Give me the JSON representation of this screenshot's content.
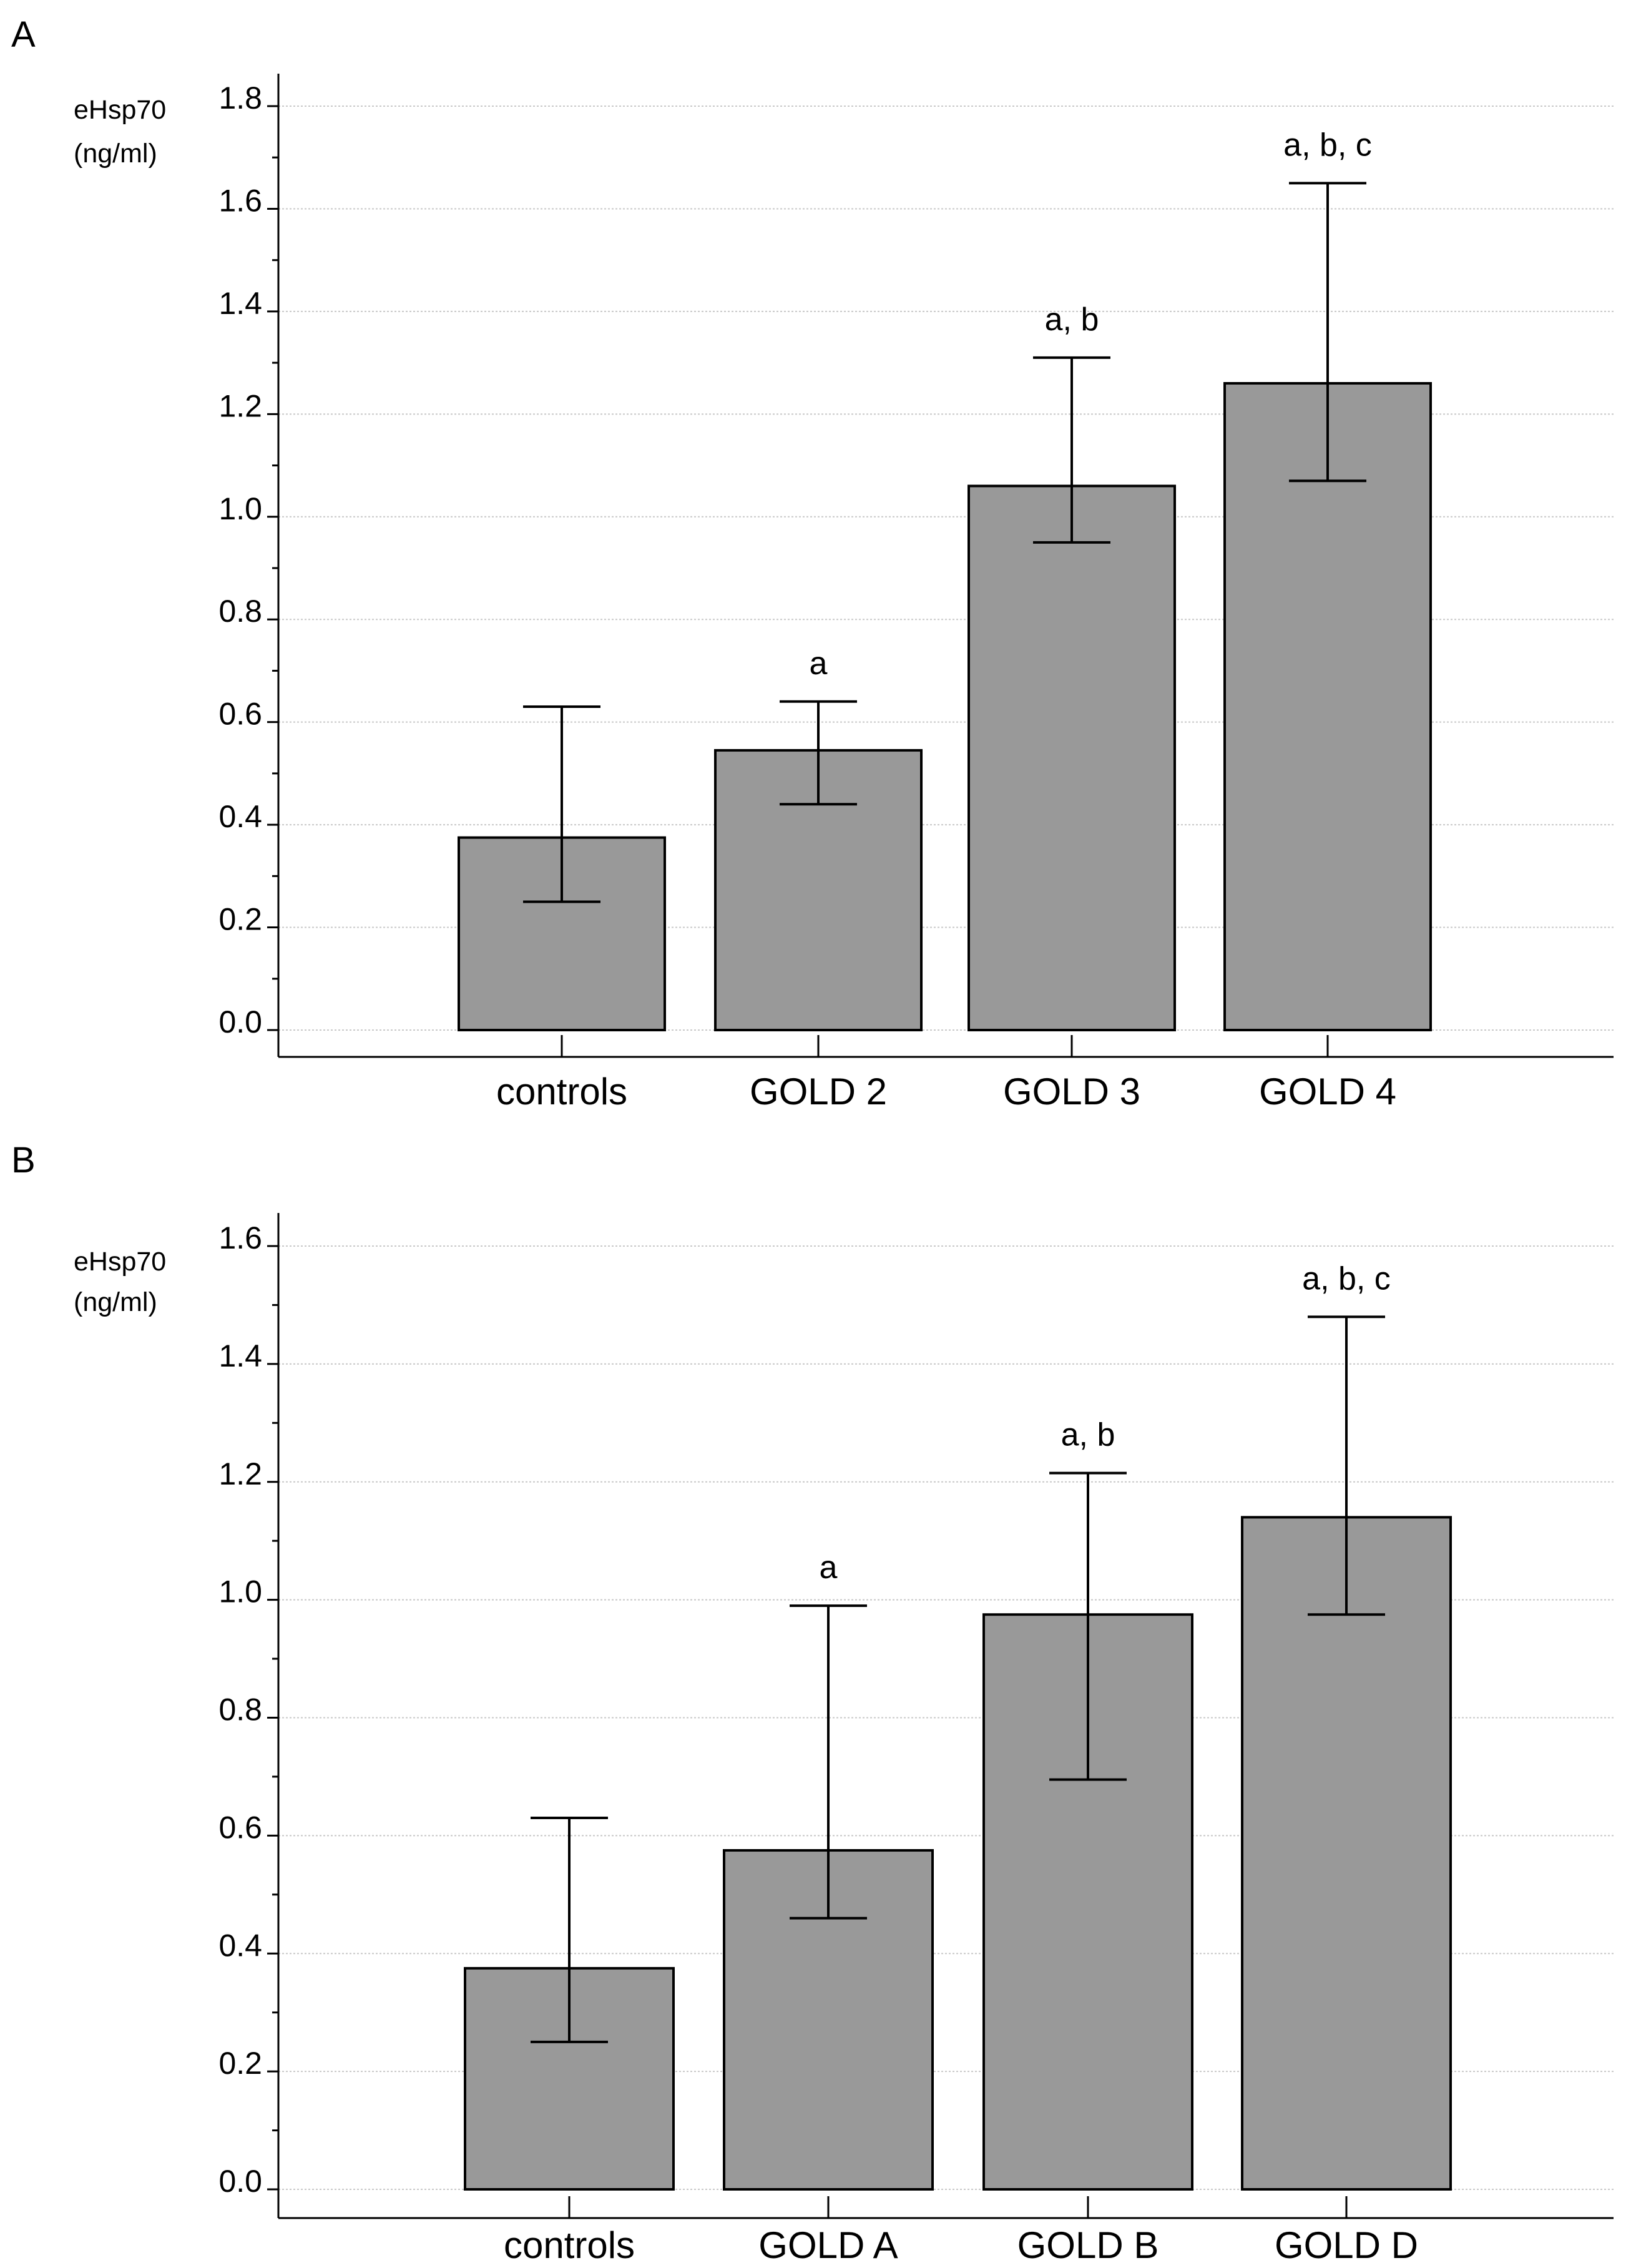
{
  "chart_data": [
    {
      "type": "bar",
      "panel": "A",
      "title": "",
      "ylabel": [
        "eHsp70",
        "(ng/ml)"
      ],
      "xlabel": "",
      "ylim": [
        0,
        1.8
      ],
      "yticks": [
        "0.0",
        "0.2",
        "0.4",
        "0.6",
        "0.8",
        "1.0",
        "1.2",
        "1.4",
        "1.6",
        "1.8"
      ],
      "grid": true,
      "categories": [
        "controls",
        "GOLD 2",
        "GOLD 3",
        "GOLD 4"
      ],
      "values": [
        0.375,
        0.545,
        1.06,
        1.26
      ],
      "error_low": [
        0.25,
        0.44,
        0.95,
        1.07
      ],
      "error_high": [
        0.63,
        0.64,
        1.31,
        1.65
      ],
      "annotations": [
        "",
        "a",
        "a, b",
        "a, b, c"
      ]
    },
    {
      "type": "bar",
      "panel": "B",
      "title": "",
      "ylabel": [
        "eHsp70",
        "(ng/ml)"
      ],
      "xlabel": "",
      "ylim": [
        0,
        1.6
      ],
      "yticks": [
        "0.0",
        "0.2",
        "0.4",
        "0.6",
        "0.8",
        "1.0",
        "1.2",
        "1.4",
        "1.6"
      ],
      "grid": true,
      "categories": [
        "controls",
        "GOLD A",
        "GOLD B",
        "GOLD D"
      ],
      "values": [
        0.375,
        0.575,
        0.975,
        1.14
      ],
      "error_low": [
        0.25,
        0.46,
        0.695,
        0.975
      ],
      "error_high": [
        0.63,
        0.99,
        1.215,
        1.48
      ],
      "annotations": [
        "",
        "a",
        "a, b",
        "a, b, c"
      ]
    }
  ]
}
